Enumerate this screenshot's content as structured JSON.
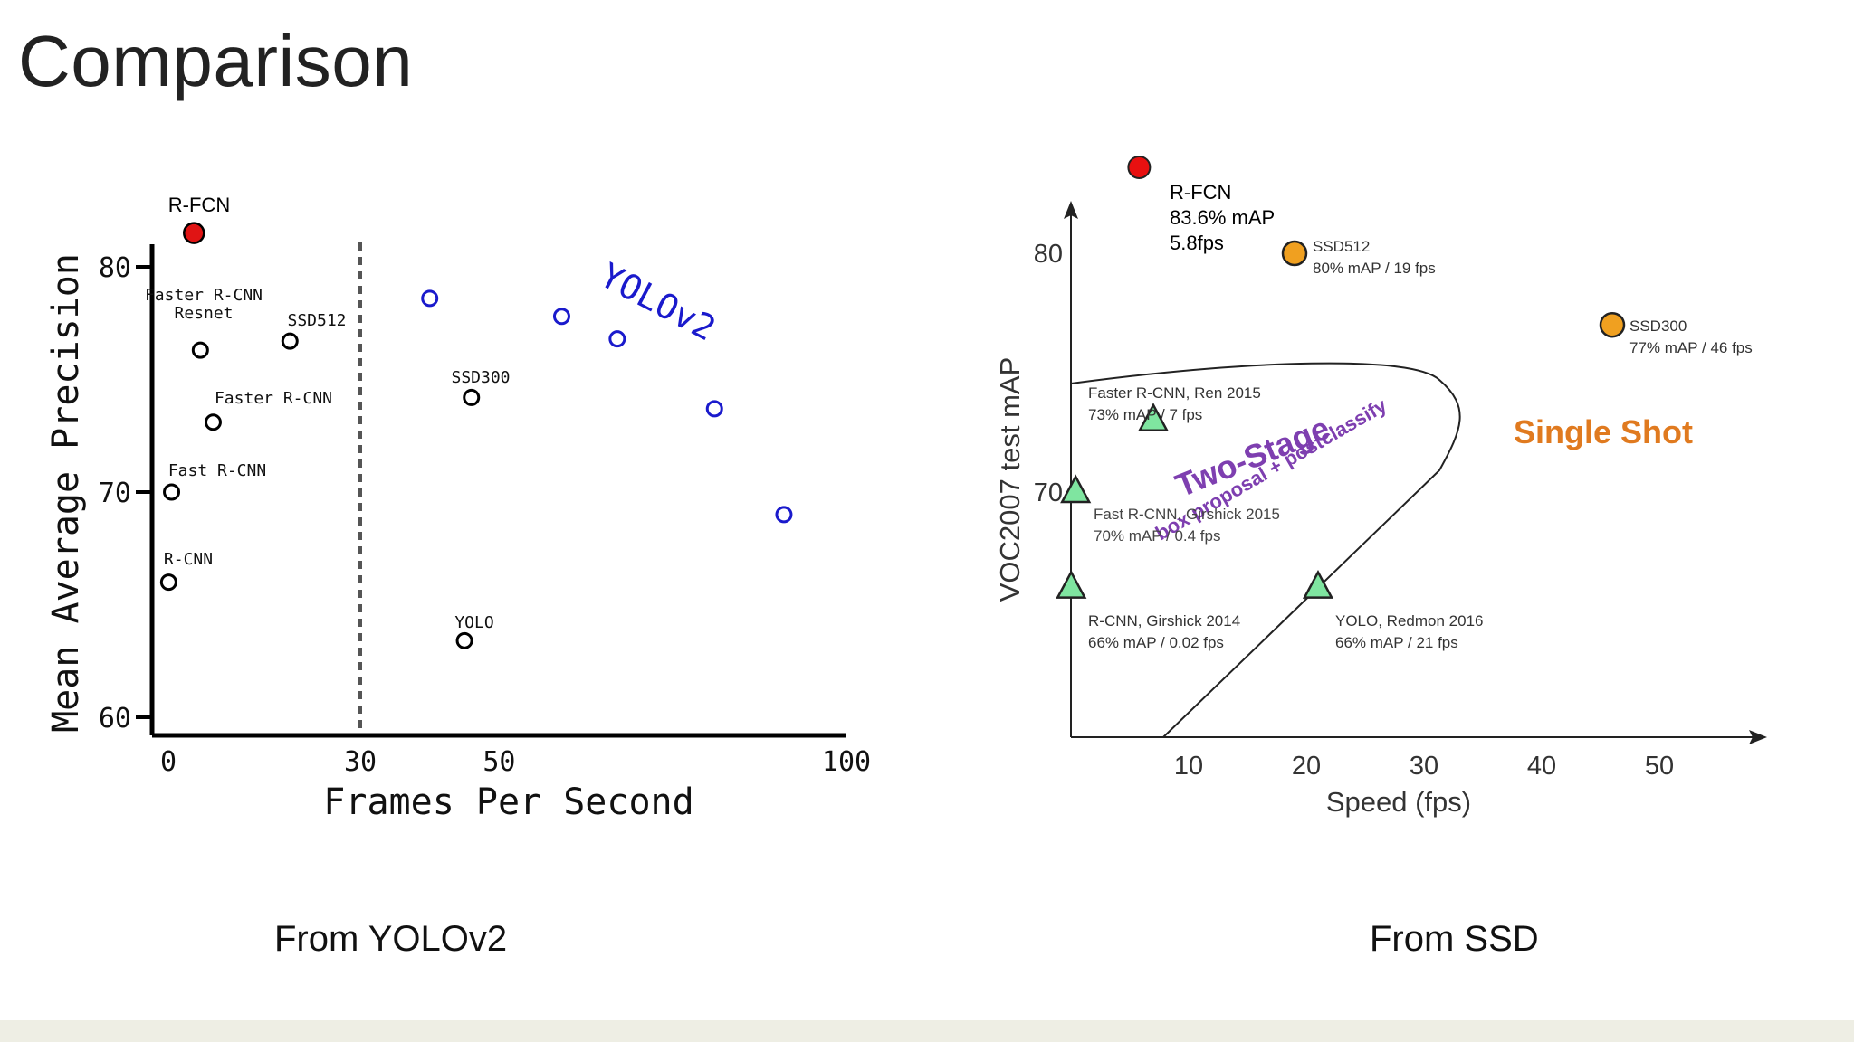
{
  "slide": {
    "title": "Comparison",
    "caption_left": "From YOLOv2",
    "caption_right": "From SSD"
  },
  "chart_data": [
    {
      "type": "scatter",
      "title": "",
      "xlabel": "Frames Per Second",
      "ylabel": "Mean Average Precision",
      "xticks": [
        0,
        30,
        50,
        100
      ],
      "yticks": [
        60,
        70,
        80
      ],
      "threshold_x": 30,
      "points": [
        {
          "label": "R-FCN",
          "x": 4,
          "y": 81.5,
          "style": "filled-red"
        },
        {
          "label": "Faster R-CNN\nResnet",
          "x": 5,
          "y": 76.3,
          "style": "open-black"
        },
        {
          "label": "SSD512",
          "x": 19,
          "y": 76.7,
          "style": "open-black"
        },
        {
          "label": "Faster R-CNN",
          "x": 7,
          "y": 73.1,
          "style": "open-black"
        },
        {
          "label": "SSD300",
          "x": 46,
          "y": 74.2,
          "style": "open-black"
        },
        {
          "label": "Fast R-CNN",
          "x": 0.5,
          "y": 70.0,
          "style": "open-black"
        },
        {
          "label": "R-CNN",
          "x": 0.05,
          "y": 66.0,
          "style": "open-black"
        },
        {
          "label": "YOLO",
          "x": 45,
          "y": 63.4,
          "style": "open-black"
        },
        {
          "label": "",
          "x": 40,
          "y": 78.6,
          "style": "open-blue"
        },
        {
          "label": "",
          "x": 59,
          "y": 77.8,
          "style": "open-blue"
        },
        {
          "label": "",
          "x": 67,
          "y": 76.8,
          "style": "open-blue"
        },
        {
          "label": "",
          "x": 81,
          "y": 73.7,
          "style": "open-blue"
        },
        {
          "label": "",
          "x": 91,
          "y": 69.0,
          "style": "open-blue"
        }
      ],
      "annotation": {
        "text": "YOLOv2",
        "color": "#1a1acc"
      }
    },
    {
      "type": "scatter",
      "title": "",
      "xlabel": "Speed (fps)",
      "ylabel": "VOC2007 test mAP",
      "xticks": [
        10,
        20,
        30,
        40,
        50
      ],
      "yticks": [
        70,
        80
      ],
      "points": [
        {
          "label": "R-FCN\n83.6% mAP\n5.8fps",
          "x": 5.8,
          "y": 83.6,
          "style": "circle-red"
        },
        {
          "label": "SSD512\n80% mAP / 19 fps",
          "x": 19,
          "y": 80,
          "style": "circle-orange"
        },
        {
          "label": "SSD300\n77% mAP / 46 fps",
          "x": 46,
          "y": 77,
          "style": "circle-orange"
        },
        {
          "label": "Faster R-CNN, Ren 2015\n73% mAP / 7 fps",
          "x": 7,
          "y": 73,
          "style": "triangle-green"
        },
        {
          "label": "Fast R-CNN, Girshick 2015\n70% mAP / 0.4 fps",
          "x": 0.4,
          "y": 70,
          "style": "triangle-green"
        },
        {
          "label": "R-CNN, Girshick 2014\n66% mAP / 0.02 fps",
          "x": 0.02,
          "y": 66,
          "style": "triangle-green"
        },
        {
          "label": "YOLO, Redmon 2016\n66% mAP / 21 fps",
          "x": 21,
          "y": 66,
          "style": "triangle-green"
        }
      ],
      "regions": [
        {
          "label": "Two-Stage",
          "sublabel": "box proposal + postclassify",
          "color": "#7e3fb0"
        },
        {
          "label": "Single Shot",
          "color": "#e07a1f"
        }
      ]
    }
  ]
}
